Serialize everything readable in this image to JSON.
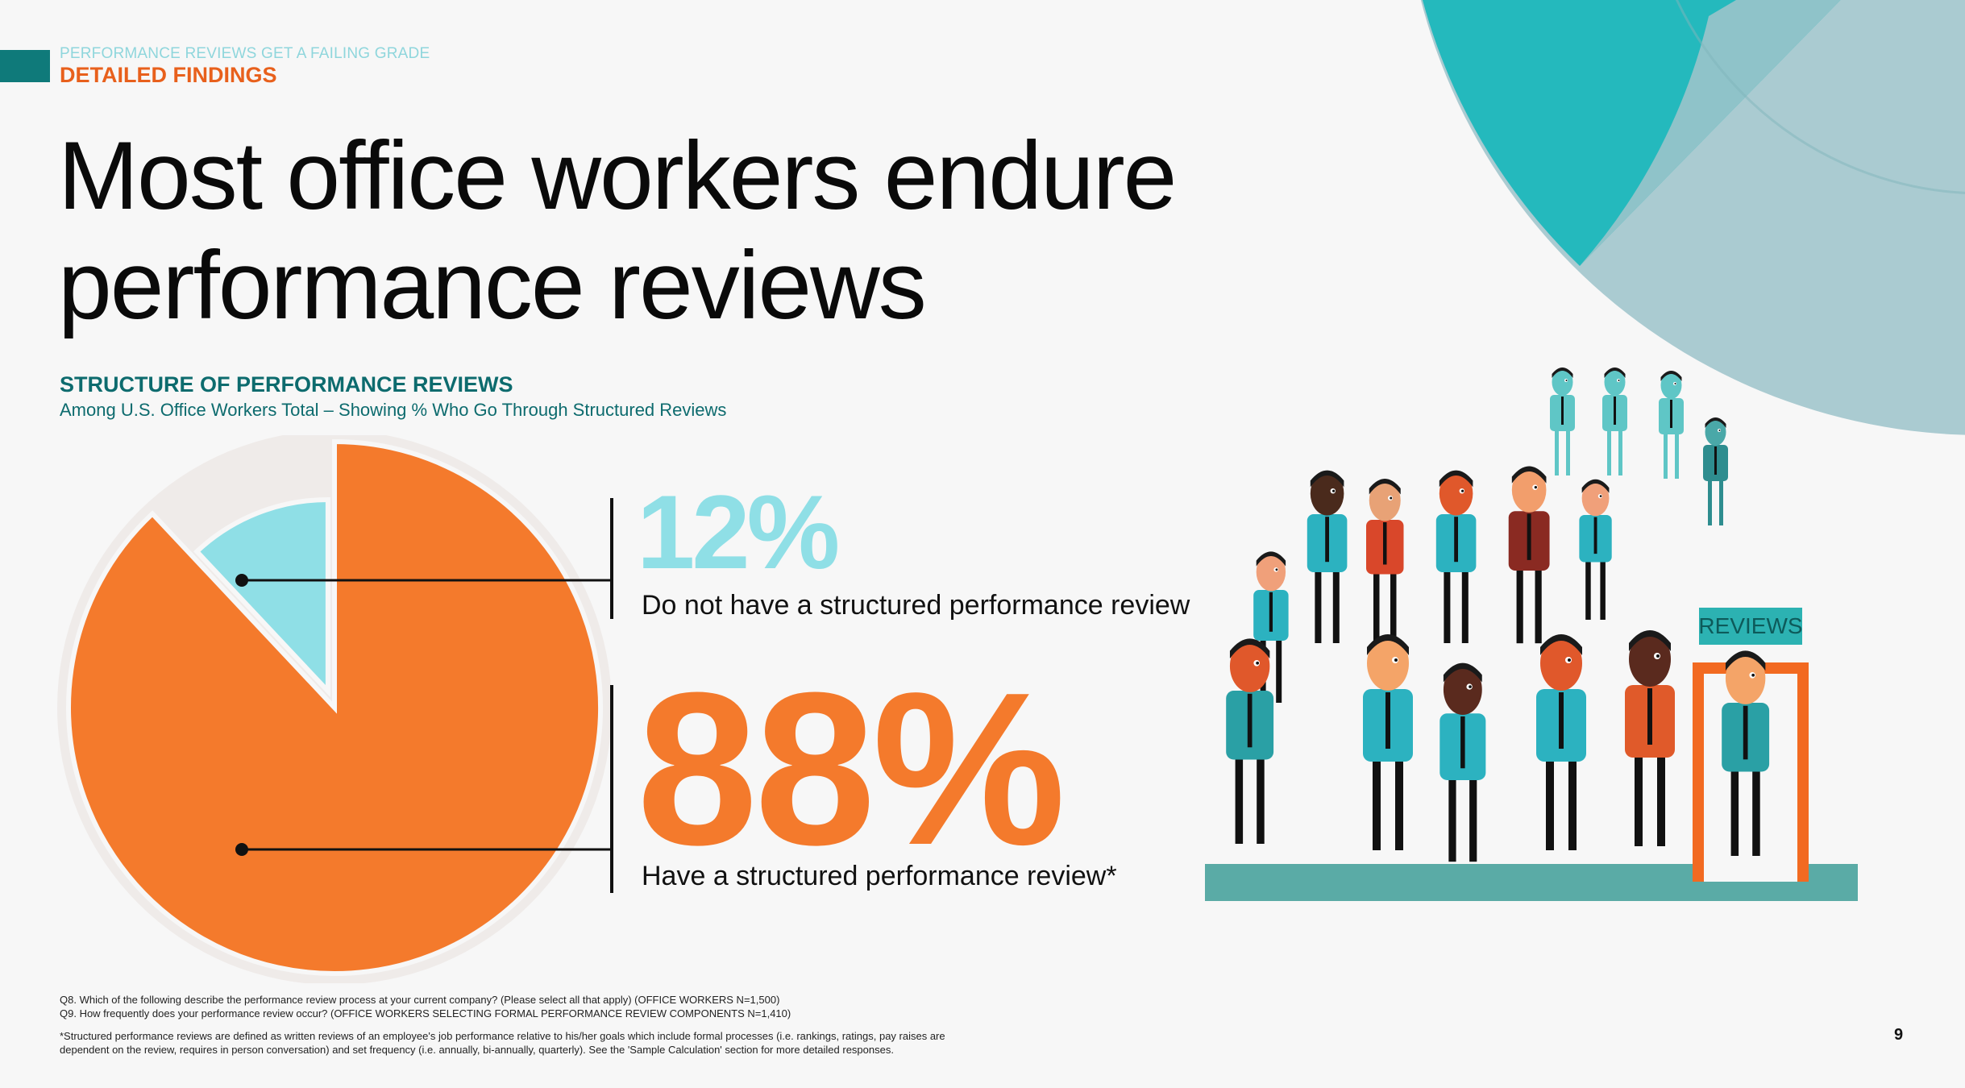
{
  "header": {
    "kicker": "PERFORMANCE REVIEWS GET A FAILING GRADE",
    "section": "DETAILED FINDINGS",
    "headline": "Most office workers endure performance reviews"
  },
  "colors": {
    "orange": "#f47a2c",
    "light_teal": "#8fdfe6",
    "dark_teal": "#0d6b6e",
    "section_orange": "#e8601c"
  },
  "chart_data": {
    "type": "pie",
    "title": "STRUCTURE OF PERFORMANCE REVIEWS",
    "subtitle": "Among U.S. Office Workers Total – Showing % Who Go Through Structured Reviews",
    "slices": [
      {
        "label": "Do not have a structured performance review",
        "value": 12,
        "display": "12%",
        "color": "#8fdfe6"
      },
      {
        "label": "Have a structured performance review*",
        "value": 88,
        "display": "88%",
        "color": "#f47a2c"
      }
    ]
  },
  "illustration": {
    "sign_text": "REVIEWS"
  },
  "footnotes": {
    "q8": "Q8. Which of the following describe the performance review process at your current company? (Please select all that apply) (OFFICE WORKERS N=1,500)",
    "q9": "Q9. How frequently does your performance review occur? (OFFICE WORKERS SELECTING FORMAL PERFORMANCE REVIEW COMPONENTS N=1,410)",
    "note": "*Structured performance reviews are defined as written reviews of an employee's job performance relative to his/her goals which include formal processes (i.e. rankings, ratings, pay raises are dependent on the review, requires in person conversation) and set frequency (i.e. annually, bi-annually, quarterly). See the 'Sample Calculation' section for more detailed responses."
  },
  "page_number": "9"
}
